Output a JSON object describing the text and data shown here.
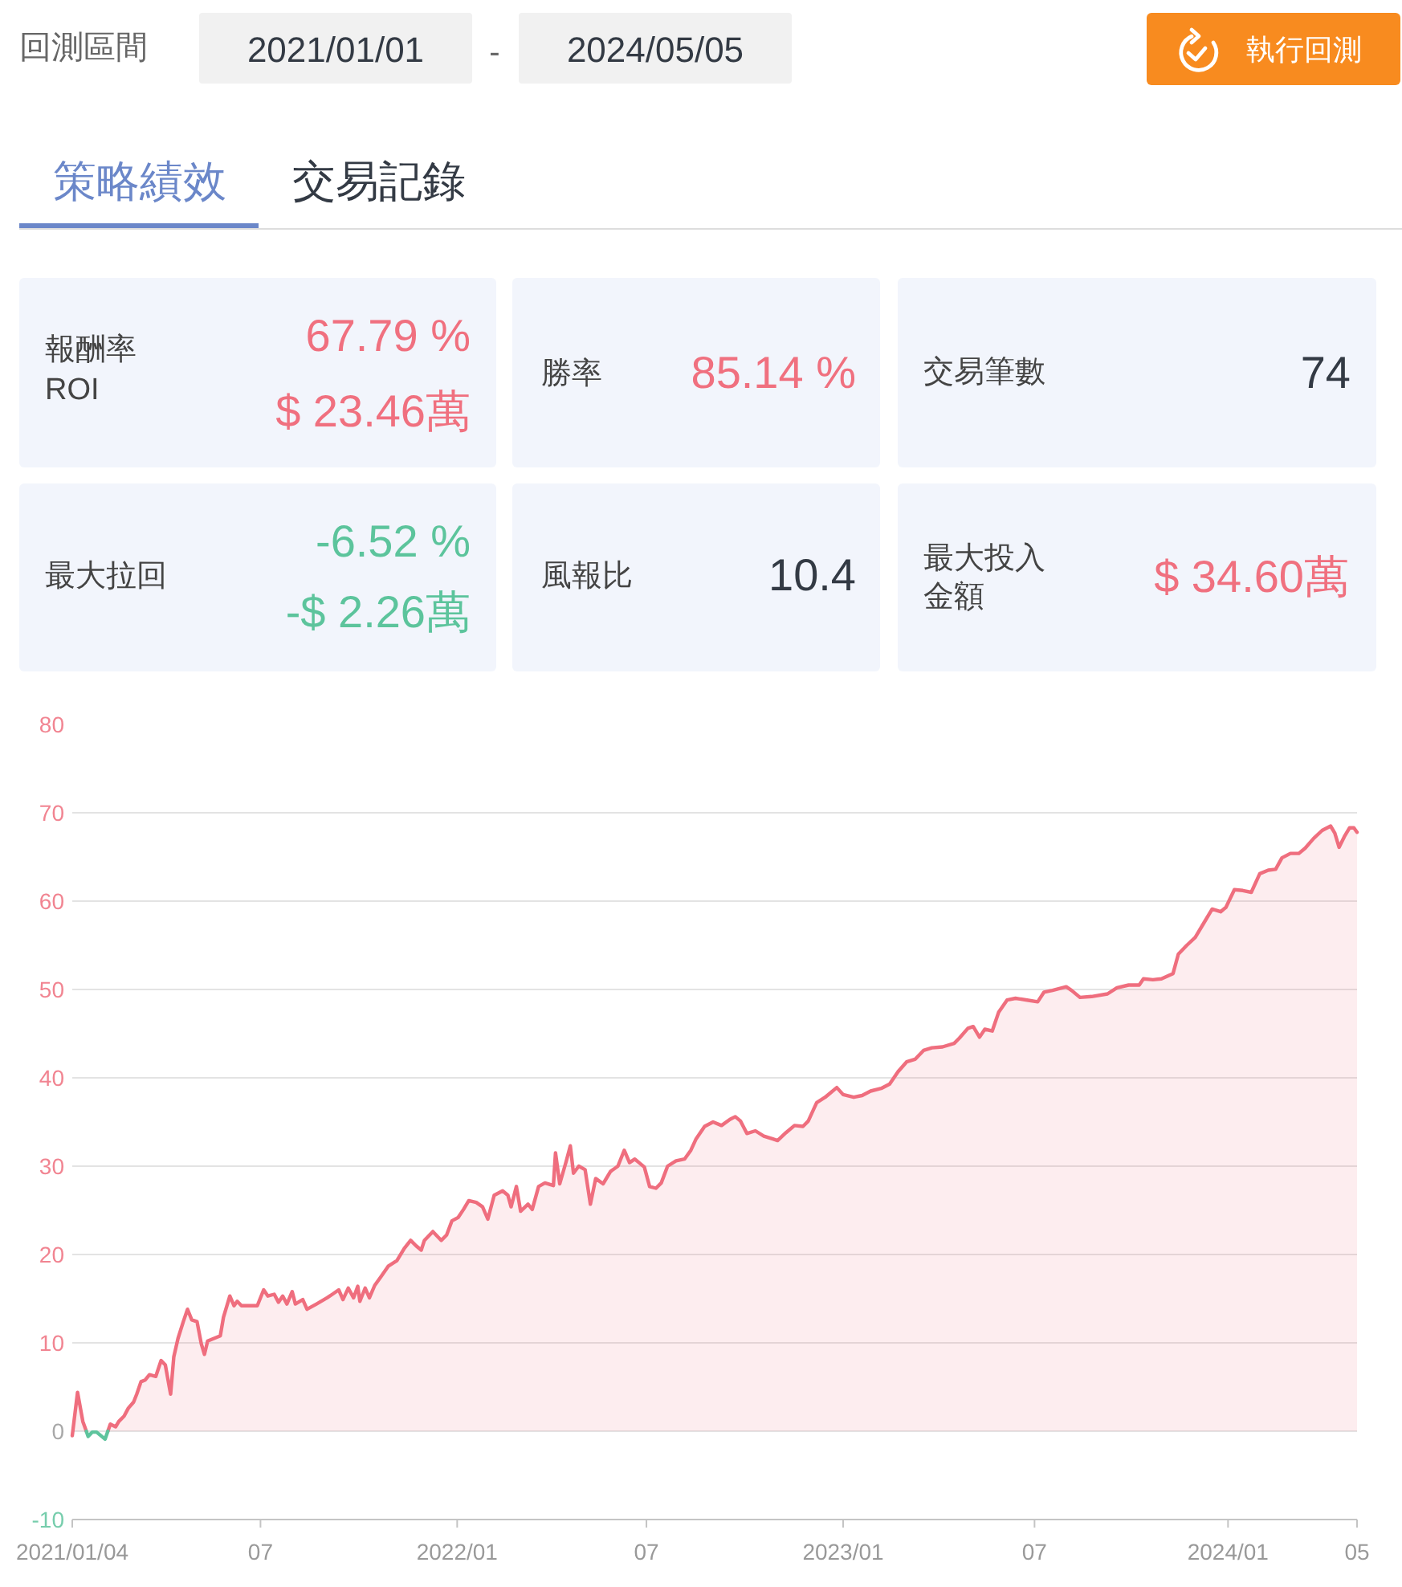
{
  "chart_data": [
    {
      "type": "other",
      "annotations": [
        "回測區間",
        "2021/01/01",
        "-",
        "2024/05/05",
        "執行回測",
        "策略績效",
        "交易記錄",
        "報酬率",
        "ROI",
        "67.79 %",
        "$ 23.46萬",
        "勝率",
        "85.14 %",
        "交易筆數",
        "74",
        "最大拉回",
        "-6.52 %",
        "-$ 2.26萬",
        "風報比",
        "10.4",
        "最大投入",
        "金額",
        "$ 34.60萬"
      ]
    },
    {
      "type": "area",
      "xlim": [
        "2021-01-04",
        "2024-05-03"
      ],
      "xticks": [
        {
          "value": "2021-01-04",
          "label": "2021/01/04"
        },
        {
          "value": "2021-07-01",
          "label": "07"
        },
        {
          "value": "2022-01-03",
          "label": "2022/01"
        },
        {
          "value": "2022-07-01",
          "label": "07"
        },
        {
          "value": "2023-01-03",
          "label": "2023/01"
        },
        {
          "value": "2023-07-03",
          "label": "07"
        },
        {
          "value": "2024-01-02",
          "label": "2024/01"
        },
        {
          "value": "2024-05-03",
          "label": "05"
        }
      ],
      "ylim": [
        -10,
        80
      ],
      "yticks": [
        -10,
        0,
        10,
        20,
        30,
        40,
        50,
        60,
        70,
        80
      ],
      "grid": "y",
      "series": [
        {
          "color": "#ef6e7e",
          "x": [
            "2021-01-04",
            "2021-01-09",
            "2021-01-14",
            "2021-01-17",
            "2021-01-17T07:00",
            "2021-01-25",
            "2021-02-06T16:00",
            "2021-02-09",
            "2021-02-14",
            "2021-02-17",
            "2021-02-22",
            "2021-02-26",
            "2021-03-03",
            "2021-03-06",
            "2021-03-10",
            "2021-03-14",
            "2021-03-18",
            "2021-03-24",
            "2021-03-29",
            "2021-04-02",
            "2021-04-07",
            "2021-04-10",
            "2021-04-14",
            "2021-04-19",
            "2021-04-23",
            "2021-04-27",
            "2021-05-02",
            "2021-05-06",
            "2021-05-09",
            "2021-05-12",
            "2021-05-18",
            "2021-05-24",
            "2021-05-27",
            "2021-06-02",
            "2021-06-06",
            "2021-06-09",
            "2021-06-13",
            "2021-06-20",
            "2021-06-28",
            "2021-07-04",
            "2021-07-08",
            "2021-07-14",
            "2021-07-18",
            "2021-07-22",
            "2021-07-26",
            "2021-07-31",
            "2021-08-03",
            "2021-08-10",
            "2021-08-14",
            "2021-08-23",
            "2021-09-02",
            "2021-09-07",
            "2021-09-13",
            "2021-09-17",
            "2021-09-22",
            "2021-09-27",
            "2021-10-01",
            "2021-10-03",
            "2021-10-08",
            "2021-10-12",
            "2021-10-17",
            "2021-10-23",
            "2021-10-30",
            "2021-11-07",
            "2021-11-14",
            "2021-11-20",
            "2021-11-25",
            "2021-11-30",
            "2021-12-03",
            "2021-12-11",
            "2021-12-19",
            "2021-12-24",
            "2021-12-29",
            "2022-01-04",
            "2022-01-09",
            "2022-01-14",
            "2022-01-21",
            "2022-01-27",
            "2022-02-01",
            "2022-02-07",
            "2022-02-15",
            "2022-02-20",
            "2022-02-23",
            "2022-02-28",
            "2022-03-04",
            "2022-03-11",
            "2022-03-15",
            "2022-03-21",
            "2022-03-27",
            "2022-04-04",
            "2022-04-06",
            "2022-04-10",
            "2022-04-16",
            "2022-04-20",
            "2022-04-23",
            "2022-04-28",
            "2022-05-04",
            "2022-05-09",
            "2022-05-14",
            "2022-05-21",
            "2022-05-28",
            "2022-06-04",
            "2022-06-10",
            "2022-06-15",
            "2022-06-20",
            "2022-06-24",
            "2022-06-29",
            "2022-07-04",
            "2022-07-10",
            "2022-07-15",
            "2022-07-21",
            "2022-07-29",
            "2022-08-06",
            "2022-08-12",
            "2022-08-17",
            "2022-08-25",
            "2022-09-02",
            "2022-09-10",
            "2022-09-18",
            "2022-09-23",
            "2022-09-28",
            "2022-10-04",
            "2022-10-12",
            "2022-10-20",
            "2022-10-28",
            "2022-11-02",
            "2022-11-10",
            "2022-11-18",
            "2022-11-26",
            "2022-12-01",
            "2022-12-09",
            "2022-12-17",
            "2022-12-22",
            "2022-12-28",
            "2023-01-03",
            "2023-01-13",
            "2023-01-21",
            "2023-01-29",
            "2023-02-08",
            "2023-02-16",
            "2023-02-24",
            "2023-03-04",
            "2023-03-12",
            "2023-03-20",
            "2023-03-28",
            "2023-04-07",
            "2023-04-18",
            "2023-04-23",
            "2023-05-01",
            "2023-05-06",
            "2023-05-12",
            "2023-05-17",
            "2023-05-24",
            "2023-05-30",
            "2023-06-07",
            "2023-06-15",
            "2023-06-26",
            "2023-07-06",
            "2023-07-12",
            "2023-07-20",
            "2023-08-02",
            "2023-08-07",
            "2023-08-15",
            "2023-08-26",
            "2023-09-10",
            "2023-09-19",
            "2023-09-30",
            "2023-10-10",
            "2023-10-14",
            "2023-10-23",
            "2023-10-31",
            "2023-11-11",
            "2023-11-16",
            "2023-11-24",
            "2023-12-02",
            "2023-12-10",
            "2023-12-18",
            "2023-12-26",
            "2023-12-31",
            "2024-01-08",
            "2024-01-16",
            "2024-01-24",
            "2024-02-01",
            "2024-02-09",
            "2024-02-16",
            "2024-02-22",
            "2024-03-01",
            "2024-03-09",
            "2024-03-15",
            "2024-03-23",
            "2024-03-31",
            "2024-04-08",
            "2024-04-12",
            "2024-04-16",
            "2024-04-21",
            "2024-04-26",
            "2024-04-30",
            "2024-05-03"
          ],
          "values": [
            -0.5,
            4.4,
            1.1,
            0.1,
            0,
            null,
            0,
            0.8,
            0.5,
            1.1,
            1.7,
            2.6,
            3.3,
            4.2,
            5.6,
            5.8,
            6.4,
            6.2,
            8.0,
            7.5,
            4.2,
            8.4,
            10.5,
            12.4,
            13.8,
            12.6,
            12.4,
            9.9,
            8.7,
            10.2,
            10.5,
            10.8,
            12.9,
            15.3,
            14.2,
            14.7,
            14.2,
            14.2,
            14.2,
            16.0,
            15.3,
            15.5,
            14.6,
            15.3,
            14.4,
            15.8,
            14.4,
            14.9,
            13.8,
            14.4,
            15.1,
            15.5,
            16.0,
            14.9,
            16.2,
            15.1,
            16.4,
            14.7,
            16.2,
            15.1,
            16.5,
            17.5,
            18.7,
            19.3,
            20.7,
            21.6,
            21.0,
            20.5,
            21.6,
            22.6,
            21.6,
            22.2,
            23.8,
            24.2,
            25.1,
            26.1,
            25.9,
            25.4,
            24.0,
            26.7,
            27.2,
            26.7,
            25.4,
            27.7,
            24.9,
            25.7,
            25.1,
            27.7,
            28.1,
            27.8,
            31.5,
            28.0,
            30.5,
            32.3,
            29.2,
            30.0,
            29.6,
            25.7,
            28.6,
            28.0,
            29.4,
            30.0,
            31.8,
            30.4,
            30.8,
            30.4,
            29.9,
            27.7,
            27.5,
            28.1,
            30.0,
            30.6,
            30.8,
            31.8,
            33.1,
            34.5,
            35.0,
            34.6,
            35.3,
            35.6,
            35.1,
            33.7,
            34.0,
            33.4,
            33.1,
            32.9,
            33.8,
            34.6,
            34.5,
            35.1,
            37.2,
            37.8,
            38.3,
            38.9,
            38.1,
            37.8,
            38.0,
            38.5,
            38.8,
            39.3,
            40.7,
            41.8,
            42.1,
            43.1,
            43.4,
            43.5,
            43.9,
            44.5,
            45.6,
            45.8,
            44.6,
            45.5,
            45.3,
            47.4,
            48.8,
            49.0,
            48.8,
            48.6,
            49.7,
            49.9,
            50.3,
            49.9,
            49.1,
            49.2,
            49.5,
            50.2,
            50.5,
            50.5,
            51.2,
            51.1,
            51.2,
            51.8,
            54.0,
            55.0,
            55.9,
            57.5,
            59.1,
            58.8,
            59.3,
            61.3,
            61.2,
            61.0,
            63.1,
            63.5,
            63.6,
            64.9,
            65.4,
            65.4,
            66.0,
            67.1,
            68.0,
            68.5,
            67.7,
            66.1,
            67.3,
            68.3,
            68.3,
            67.8
          ]
        },
        {
          "color": "#5ec49d",
          "type": "line",
          "x": [
            "2021-01-17T07:00",
            "2021-01-19",
            "2021-01-23",
            "2021-01-27",
            "2021-02-04",
            "2021-02-06T16:00"
          ],
          "values": [
            0,
            -0.6,
            -0.1,
            -0.1,
            -0.9,
            0
          ]
        }
      ]
    }
  ]
}
